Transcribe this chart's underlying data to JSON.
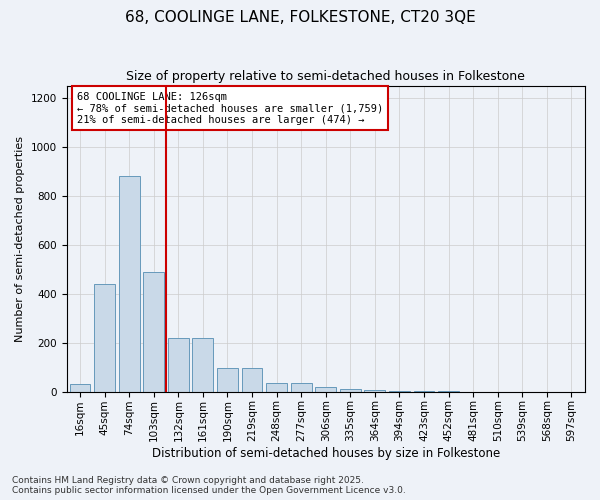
{
  "title1": "68, COOLINGE LANE, FOLKESTONE, CT20 3QE",
  "title2": "Size of property relative to semi-detached houses in Folkestone",
  "xlabel": "Distribution of semi-detached houses by size in Folkestone",
  "ylabel": "Number of semi-detached properties",
  "categories": [
    "16sqm",
    "45sqm",
    "74sqm",
    "103sqm",
    "132sqm",
    "161sqm",
    "190sqm",
    "219sqm",
    "248sqm",
    "277sqm",
    "306sqm",
    "335sqm",
    "364sqm",
    "394sqm",
    "423sqm",
    "452sqm",
    "481sqm",
    "510sqm",
    "539sqm",
    "568sqm",
    "597sqm"
  ],
  "values": [
    30,
    440,
    880,
    490,
    220,
    220,
    95,
    95,
    35,
    35,
    18,
    10,
    5,
    2,
    1,
    1,
    0,
    0,
    0,
    0,
    0
  ],
  "bar_color": "#c9d9e8",
  "bar_edge_color": "#6699bb",
  "vline_index": 4,
  "vline_color": "#cc0000",
  "annotation_text": "68 COOLINGE LANE: 126sqm\n← 78% of semi-detached houses are smaller (1,759)\n21% of semi-detached houses are larger (474) →",
  "annotation_box_color": "#ffffff",
  "annotation_box_edge_color": "#cc0000",
  "ylim": [
    0,
    1250
  ],
  "yticks": [
    0,
    200,
    400,
    600,
    800,
    1000,
    1200
  ],
  "grid_color": "#cccccc",
  "background_color": "#eef2f8",
  "footer1": "Contains HM Land Registry data © Crown copyright and database right 2025.",
  "footer2": "Contains public sector information licensed under the Open Government Licence v3.0.",
  "title1_fontsize": 11,
  "title2_fontsize": 9,
  "xlabel_fontsize": 8.5,
  "ylabel_fontsize": 8,
  "tick_fontsize": 7.5,
  "annotation_fontsize": 7.5,
  "footer_fontsize": 6.5
}
